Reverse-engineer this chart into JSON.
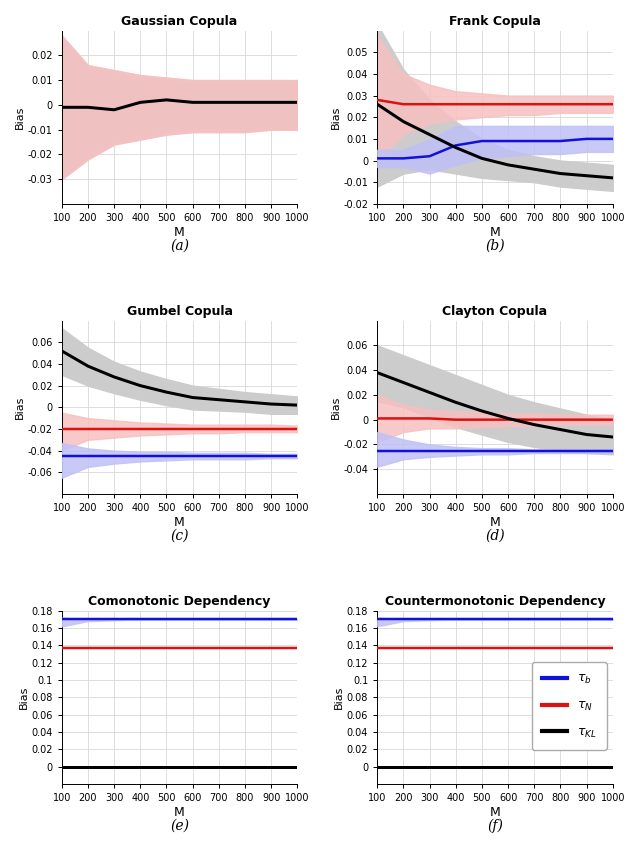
{
  "titles": [
    "Gaussian Copula",
    "Frank Copula",
    "Gumbel Copula",
    "Clayton Copula",
    "Comonotonic Dependency",
    "Countermonotonic Dependency"
  ],
  "subtitle_labels": [
    "(a)",
    "(b)",
    "(c)",
    "(d)",
    "(e)",
    "(f)"
  ],
  "ylabel": "Bias",
  "xlabel": "M",
  "M_plot": [
    100,
    200,
    300,
    400,
    500,
    600,
    700,
    800,
    900,
    1000
  ],
  "panel_a": {
    "ylim": [
      -0.04,
      0.03
    ],
    "yticks": [
      -0.03,
      -0.02,
      -0.01,
      0.0,
      0.01,
      0.02
    ],
    "ytick_labels": [
      "-0.03",
      "-0.02",
      "-0.01",
      "0",
      "0.01",
      "0.02"
    ],
    "gray_upper": [
      0.027,
      0.015,
      0.013,
      0.011,
      0.01,
      0.009,
      0.009,
      0.009,
      0.009,
      0.009
    ],
    "gray_lower": [
      -0.029,
      -0.021,
      -0.015,
      -0.013,
      -0.011,
      -0.01,
      -0.01,
      -0.01,
      -0.009,
      -0.009
    ],
    "red_upper": [
      0.028,
      0.016,
      0.014,
      0.012,
      0.011,
      0.01,
      0.01,
      0.01,
      0.01,
      0.01
    ],
    "red_lower": [
      -0.03,
      -0.022,
      -0.016,
      -0.014,
      -0.012,
      -0.011,
      -0.011,
      -0.011,
      -0.01,
      -0.01
    ],
    "black_mean": [
      -0.001,
      -0.001,
      -0.002,
      0.001,
      0.002,
      0.001,
      0.001,
      0.001,
      0.001,
      0.001
    ],
    "red_mean": null,
    "blue_mean": null,
    "blue_upper": null,
    "blue_lower": null,
    "red_band_visible": true,
    "red_line_visible": false,
    "blue_band_visible": false,
    "blue_line_visible": false
  },
  "panel_b": {
    "ylim": [
      -0.02,
      0.06
    ],
    "yticks": [
      -0.02,
      -0.01,
      0.0,
      0.01,
      0.02,
      0.03,
      0.04,
      0.05
    ],
    "ytick_labels": [
      "-0.02",
      "-0.01",
      "0",
      "0.01",
      "0.02",
      "0.03",
      "0.04",
      "0.05"
    ],
    "gray_upper": [
      0.063,
      0.042,
      0.028,
      0.018,
      0.01,
      0.005,
      0.002,
      0.0,
      -0.001,
      -0.002
    ],
    "gray_lower": [
      -0.012,
      -0.006,
      -0.004,
      -0.006,
      -0.008,
      -0.009,
      -0.01,
      -0.012,
      -0.013,
      -0.014
    ],
    "red_upper": [
      0.058,
      0.04,
      0.035,
      0.032,
      0.031,
      0.03,
      0.03,
      0.03,
      0.03,
      0.03
    ],
    "red_lower": [
      0.0,
      0.012,
      0.017,
      0.019,
      0.02,
      0.021,
      0.021,
      0.022,
      0.022,
      0.022
    ],
    "blue_upper": [
      0.005,
      0.005,
      0.01,
      0.016,
      0.016,
      0.016,
      0.016,
      0.016,
      0.016,
      0.016
    ],
    "blue_lower": [
      -0.003,
      -0.003,
      -0.006,
      -0.002,
      0.001,
      0.002,
      0.003,
      0.003,
      0.004,
      0.004
    ],
    "black_mean": [
      0.026,
      0.018,
      0.012,
      0.006,
      0.001,
      -0.002,
      -0.004,
      -0.006,
      -0.007,
      -0.008
    ],
    "red_mean": [
      0.028,
      0.026,
      0.026,
      0.026,
      0.026,
      0.026,
      0.026,
      0.026,
      0.026,
      0.026
    ],
    "blue_mean": [
      0.001,
      0.001,
      0.002,
      0.007,
      0.009,
      0.009,
      0.009,
      0.009,
      0.01,
      0.01
    ],
    "red_band_visible": true,
    "red_line_visible": true,
    "blue_band_visible": true,
    "blue_line_visible": true
  },
  "panel_c": {
    "ylim": [
      -0.08,
      0.08
    ],
    "yticks": [
      -0.06,
      -0.04,
      -0.02,
      0.0,
      0.02,
      0.04,
      0.06
    ],
    "ytick_labels": [
      "-0.06",
      "-0.04",
      "-0.02",
      "0",
      "0.02",
      "0.04",
      "0.06"
    ],
    "gray_upper": [
      0.073,
      0.055,
      0.042,
      0.033,
      0.026,
      0.02,
      0.017,
      0.014,
      0.012,
      0.01
    ],
    "gray_lower": [
      0.03,
      0.02,
      0.013,
      0.007,
      0.002,
      -0.002,
      -0.003,
      -0.004,
      -0.006,
      -0.006
    ],
    "red_upper": [
      -0.005,
      -0.01,
      -0.012,
      -0.014,
      -0.015,
      -0.016,
      -0.016,
      -0.016,
      -0.016,
      -0.017
    ],
    "red_lower": [
      -0.04,
      -0.03,
      -0.028,
      -0.026,
      -0.025,
      -0.024,
      -0.024,
      -0.023,
      -0.023,
      -0.023
    ],
    "blue_upper": [
      -0.033,
      -0.038,
      -0.04,
      -0.041,
      -0.041,
      -0.042,
      -0.042,
      -0.042,
      -0.043,
      -0.043
    ],
    "blue_lower": [
      -0.065,
      -0.055,
      -0.052,
      -0.05,
      -0.049,
      -0.048,
      -0.048,
      -0.048,
      -0.047,
      -0.047
    ],
    "black_mean": [
      0.052,
      0.038,
      0.028,
      0.02,
      0.014,
      0.009,
      0.007,
      0.005,
      0.003,
      0.002
    ],
    "red_mean": [
      -0.02,
      -0.02,
      -0.02,
      -0.02,
      -0.02,
      -0.02,
      -0.02,
      -0.02,
      -0.02,
      -0.02
    ],
    "blue_mean": [
      -0.045,
      -0.045,
      -0.045,
      -0.045,
      -0.045,
      -0.045,
      -0.045,
      -0.045,
      -0.045,
      -0.045
    ],
    "red_band_visible": true,
    "red_line_visible": true,
    "blue_band_visible": true,
    "blue_line_visible": true
  },
  "panel_d": {
    "ylim": [
      -0.06,
      0.08
    ],
    "yticks": [
      -0.04,
      -0.02,
      0.0,
      0.02,
      0.04,
      0.06
    ],
    "ytick_labels": [
      "-0.04",
      "-0.02",
      "0",
      "0.02",
      "0.04",
      "0.06"
    ],
    "gray_upper": [
      0.06,
      0.052,
      0.044,
      0.036,
      0.028,
      0.02,
      0.014,
      0.009,
      0.004,
      0.0
    ],
    "gray_lower": [
      0.015,
      0.01,
      0.002,
      -0.006,
      -0.012,
      -0.018,
      -0.022,
      -0.025,
      -0.027,
      -0.028
    ],
    "red_upper": [
      0.02,
      0.012,
      0.008,
      0.007,
      0.006,
      0.005,
      0.005,
      0.004,
      0.004,
      0.004
    ],
    "red_lower": [
      -0.018,
      -0.01,
      -0.007,
      -0.007,
      -0.006,
      -0.005,
      -0.005,
      -0.004,
      -0.004,
      -0.004
    ],
    "blue_upper": [
      -0.01,
      -0.016,
      -0.02,
      -0.022,
      -0.023,
      -0.023,
      -0.024,
      -0.024,
      -0.024,
      -0.024
    ],
    "blue_lower": [
      -0.038,
      -0.032,
      -0.03,
      -0.029,
      -0.028,
      -0.028,
      -0.027,
      -0.027,
      -0.027,
      -0.027
    ],
    "black_mean": [
      0.038,
      0.03,
      0.022,
      0.014,
      0.007,
      0.001,
      -0.004,
      -0.008,
      -0.012,
      -0.014
    ],
    "red_mean": [
      0.001,
      0.001,
      0.001,
      0.0,
      0.0,
      0.0,
      0.0,
      0.0,
      0.0,
      0.0
    ],
    "blue_mean": [
      -0.025,
      -0.025,
      -0.025,
      -0.025,
      -0.025,
      -0.025,
      -0.025,
      -0.025,
      -0.025,
      -0.025
    ],
    "red_band_visible": true,
    "red_line_visible": true,
    "blue_band_visible": true,
    "blue_line_visible": true
  },
  "panel_e": {
    "ylim": [
      -0.02,
      0.18
    ],
    "yticks": [
      0.0,
      0.02,
      0.04,
      0.06,
      0.08,
      0.1,
      0.12,
      0.14,
      0.16,
      0.18
    ],
    "ytick_labels": [
      "0",
      "0.02",
      "0.04",
      "0.06",
      "0.08",
      "0.1",
      "0.12",
      "0.14",
      "0.16",
      "0.18"
    ],
    "gray_upper": null,
    "gray_lower": null,
    "blue_upper": [
      0.172,
      0.17,
      0.17,
      0.17,
      0.17,
      0.17,
      0.17,
      0.17,
      0.17,
      0.17
    ],
    "blue_lower": [
      0.162,
      0.168,
      0.169,
      0.17,
      0.17,
      0.17,
      0.17,
      0.17,
      0.17,
      0.17
    ],
    "black_mean": [
      0.0,
      0.0,
      0.0,
      0.0,
      0.0,
      0.0,
      0.0,
      0.0,
      0.0,
      0.0
    ],
    "red_mean": [
      0.137,
      0.137,
      0.137,
      0.137,
      0.137,
      0.137,
      0.137,
      0.137,
      0.137,
      0.137
    ],
    "blue_mean": [
      0.17,
      0.17,
      0.17,
      0.17,
      0.17,
      0.17,
      0.17,
      0.17,
      0.17,
      0.17
    ],
    "red_band_visible": false,
    "red_line_visible": true,
    "blue_band_visible": true,
    "blue_line_visible": true
  },
  "panel_f": {
    "ylim": [
      -0.02,
      0.18
    ],
    "yticks": [
      0.0,
      0.02,
      0.04,
      0.06,
      0.08,
      0.1,
      0.12,
      0.14,
      0.16,
      0.18
    ],
    "ytick_labels": [
      "0",
      "0.02",
      "0.04",
      "0.06",
      "0.08",
      "0.1",
      "0.12",
      "0.14",
      "0.16",
      "0.18"
    ],
    "gray_upper": null,
    "gray_lower": null,
    "blue_upper": [
      0.172,
      0.17,
      0.17,
      0.17,
      0.17,
      0.17,
      0.17,
      0.17,
      0.17,
      0.17
    ],
    "blue_lower": [
      0.162,
      0.168,
      0.169,
      0.17,
      0.17,
      0.17,
      0.17,
      0.17,
      0.17,
      0.17
    ],
    "black_mean": [
      0.0,
      0.0,
      0.0,
      0.0,
      0.0,
      0.0,
      0.0,
      0.0,
      0.0,
      0.0
    ],
    "red_mean": [
      0.137,
      0.137,
      0.137,
      0.137,
      0.137,
      0.137,
      0.137,
      0.137,
      0.137,
      0.137
    ],
    "blue_mean": [
      0.17,
      0.17,
      0.17,
      0.17,
      0.17,
      0.17,
      0.17,
      0.17,
      0.17,
      0.17
    ],
    "red_band_visible": false,
    "red_line_visible": true,
    "blue_band_visible": true,
    "blue_line_visible": true
  },
  "colors": {
    "black": "#000000",
    "red_line": "#dd1111",
    "blue_line": "#1111dd",
    "gray_band": "#cccccc",
    "red_band": "#f7c0c0",
    "blue_band": "#c0c0f7",
    "grid": "#d8d8d8"
  },
  "line_width": 1.2,
  "title_fontsize": 9,
  "label_fontsize": 8,
  "tick_fontsize": 7,
  "subtitle_fontsize": 10
}
